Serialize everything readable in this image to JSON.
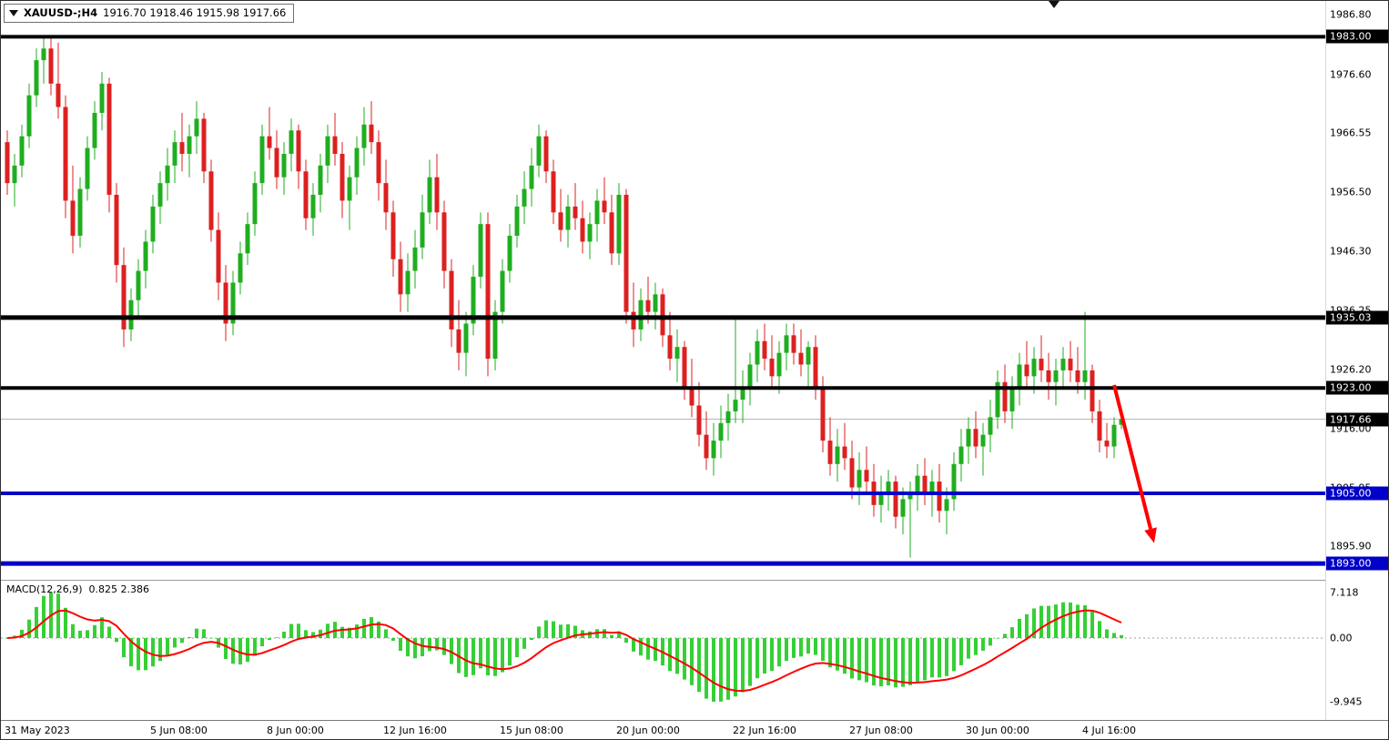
{
  "header": {
    "symbol": "XAUUSD-;H4",
    "ohlc_text": "1916.70 1918.46 1915.98 1917.66"
  },
  "macd_panel": {
    "name": "MACD(12,26,9)",
    "values": "0.825 2.386"
  },
  "colors": {
    "background": "#ffffff",
    "candle_up": "#1fae1f",
    "candle_down": "#dd2020",
    "macd_hist": "#35d035",
    "macd_signal": "#ff0000",
    "level_black": "#000000",
    "level_blue": "#0000c8",
    "current_price_line": "#b5b5b5",
    "arrow": "#ff0000",
    "badge_black": "#000000",
    "badge_blue": "#0000c8"
  },
  "chart_data": {
    "type": "candlestick",
    "symbol": "XAUUSD",
    "timeframe": "H4",
    "title": "XAUUSD-;H4",
    "current_price": 1917.66,
    "y_axis": {
      "min": 1890,
      "max": 1989,
      "ticks": [
        {
          "text": "1986.80",
          "price": 1986.8
        },
        {
          "text": "1976.60",
          "price": 1976.6
        },
        {
          "text": "1966.55",
          "price": 1966.55
        },
        {
          "text": "1956.50",
          "price": 1956.5
        },
        {
          "text": "1946.30",
          "price": 1946.3
        },
        {
          "text": "1936.25",
          "price": 1936.25
        },
        {
          "text": "1926.20",
          "price": 1926.2
        },
        {
          "text": "1916.00",
          "price": 1916.0
        },
        {
          "text": "1905.95",
          "price": 1905.95
        },
        {
          "text": "1895.90",
          "price": 1895.9
        }
      ]
    },
    "price_badges": [
      {
        "text": "1983.00",
        "price": 1983.0,
        "bg": "#000000"
      },
      {
        "text": "1935.03",
        "price": 1935.03,
        "bg": "#000000"
      },
      {
        "text": "1923.00",
        "price": 1923.0,
        "bg": "#000000"
      },
      {
        "text": "1917.66",
        "price": 1917.66,
        "bg": "#000000"
      },
      {
        "text": "1905.00",
        "price": 1905.0,
        "bg": "#0000c8"
      },
      {
        "text": "1893.00",
        "price": 1893.0,
        "bg": "#0000c8"
      }
    ],
    "levels": [
      {
        "price": 1983.0,
        "color": "#000000",
        "width": 4
      },
      {
        "price": 1935.03,
        "color": "#000000",
        "width": 5
      },
      {
        "price": 1923.0,
        "color": "#000000",
        "width": 4
      },
      {
        "price": 1905.0,
        "color": "#0000c8",
        "width": 4
      },
      {
        "price": 1893.0,
        "color": "#0000c8",
        "width": 5
      }
    ],
    "arrow": {
      "from_bar": 152,
      "from_price": 1923.5,
      "to_bar": 157.5,
      "to_price": 1896.5
    },
    "x_axis_labels": [
      {
        "text": "31 May 2023",
        "bar": 0
      },
      {
        "text": "5 Jun 08:00",
        "bar": 20
      },
      {
        "text": "8 Jun 00:00",
        "bar": 36
      },
      {
        "text": "12 Jun 16:00",
        "bar": 52
      },
      {
        "text": "15 Jun 08:00",
        "bar": 68
      },
      {
        "text": "20 Jun 00:00",
        "bar": 84
      },
      {
        "text": "22 Jun 16:00",
        "bar": 100
      },
      {
        "text": "27 Jun 08:00",
        "bar": 116
      },
      {
        "text": "30 Jun 00:00",
        "bar": 132
      },
      {
        "text": "4 Jul 16:00",
        "bar": 148
      }
    ],
    "macd": {
      "params": "12,26,9",
      "display_values": "0.825 2.386",
      "axis_max": 7.118,
      "axis_min": -9.945,
      "axis_labels": [
        {
          "text": "7.118",
          "value": 7.118
        },
        {
          "text": "0.00",
          "value": 0
        },
        {
          "text": "-9.945",
          "value": -9.945
        }
      ]
    },
    "ohlc": [
      [
        1965,
        1967,
        1956,
        1958
      ],
      [
        1958,
        1963,
        1954,
        1961
      ],
      [
        1961,
        1968,
        1959,
        1966
      ],
      [
        1966,
        1975,
        1964,
        1973
      ],
      [
        1973,
        1981,
        1971,
        1979
      ],
      [
        1979,
        1983,
        1975,
        1981
      ],
      [
        1981,
        1983,
        1973,
        1975
      ],
      [
        1975,
        1982,
        1969,
        1971
      ],
      [
        1971,
        1973,
        1952,
        1955
      ],
      [
        1955,
        1961,
        1946,
        1949
      ],
      [
        1949,
        1959,
        1947,
        1957
      ],
      [
        1957,
        1966,
        1955,
        1964
      ],
      [
        1964,
        1972,
        1962,
        1970
      ],
      [
        1970,
        1977,
        1967,
        1975
      ],
      [
        1975,
        1976,
        1953,
        1956
      ],
      [
        1956,
        1958,
        1941,
        1944
      ],
      [
        1944,
        1947,
        1930,
        1933
      ],
      [
        1933,
        1940,
        1931,
        1938
      ],
      [
        1938,
        1945,
        1935,
        1943
      ],
      [
        1943,
        1950,
        1940,
        1948
      ],
      [
        1948,
        1956,
        1946,
        1954
      ],
      [
        1954,
        1960,
        1951,
        1958
      ],
      [
        1958,
        1964,
        1955,
        1961
      ],
      [
        1961,
        1967,
        1958,
        1965
      ],
      [
        1965,
        1970,
        1960,
        1963
      ],
      [
        1963,
        1968,
        1959,
        1966
      ],
      [
        1966,
        1972,
        1963,
        1969
      ],
      [
        1969,
        1970,
        1958,
        1960
      ],
      [
        1960,
        1962,
        1948,
        1950
      ],
      [
        1950,
        1953,
        1938,
        1941
      ],
      [
        1941,
        1944,
        1931,
        1934
      ],
      [
        1934,
        1943,
        1932,
        1941
      ],
      [
        1941,
        1948,
        1939,
        1946
      ],
      [
        1946,
        1953,
        1944,
        1951
      ],
      [
        1951,
        1960,
        1949,
        1958
      ],
      [
        1958,
        1968,
        1956,
        1966
      ],
      [
        1966,
        1971,
        1962,
        1964
      ],
      [
        1964,
        1967,
        1957,
        1959
      ],
      [
        1959,
        1965,
        1956,
        1963
      ],
      [
        1963,
        1969,
        1960,
        1967
      ],
      [
        1967,
        1968,
        1957,
        1960
      ],
      [
        1960,
        1962,
        1950,
        1952
      ],
      [
        1952,
        1958,
        1949,
        1956
      ],
      [
        1956,
        1963,
        1953,
        1961
      ],
      [
        1961,
        1968,
        1958,
        1966
      ],
      [
        1966,
        1970,
        1961,
        1963
      ],
      [
        1963,
        1965,
        1952,
        1955
      ],
      [
        1955,
        1961,
        1950,
        1959
      ],
      [
        1959,
        1966,
        1956,
        1964
      ],
      [
        1964,
        1971,
        1961,
        1968
      ],
      [
        1968,
        1972,
        1963,
        1965
      ],
      [
        1965,
        1967,
        1955,
        1958
      ],
      [
        1958,
        1962,
        1950,
        1953
      ],
      [
        1953,
        1955,
        1942,
        1945
      ],
      [
        1945,
        1948,
        1936,
        1939
      ],
      [
        1939,
        1946,
        1936,
        1943
      ],
      [
        1943,
        1950,
        1940,
        1947
      ],
      [
        1947,
        1956,
        1945,
        1953
      ],
      [
        1953,
        1962,
        1951,
        1959
      ],
      [
        1959,
        1963,
        1950,
        1953
      ],
      [
        1953,
        1955,
        1940,
        1943
      ],
      [
        1943,
        1945,
        1930,
        1933
      ],
      [
        1933,
        1938,
        1926,
        1929
      ],
      [
        1929,
        1936,
        1925,
        1934
      ],
      [
        1934,
        1944,
        1932,
        1942
      ],
      [
        1942,
        1953,
        1940,
        1951
      ],
      [
        1951,
        1953,
        1925,
        1928
      ],
      [
        1928,
        1938,
        1926,
        1936
      ],
      [
        1936,
        1945,
        1934,
        1943
      ],
      [
        1943,
        1951,
        1941,
        1949
      ],
      [
        1949,
        1956,
        1947,
        1954
      ],
      [
        1954,
        1960,
        1951,
        1957
      ],
      [
        1957,
        1964,
        1954,
        1961
      ],
      [
        1961,
        1968,
        1959,
        1966
      ],
      [
        1966,
        1967,
        1958,
        1960
      ],
      [
        1960,
        1962,
        1951,
        1953
      ],
      [
        1953,
        1957,
        1948,
        1950
      ],
      [
        1950,
        1956,
        1947,
        1954
      ],
      [
        1954,
        1958,
        1950,
        1952
      ],
      [
        1952,
        1955,
        1946,
        1948
      ],
      [
        1948,
        1953,
        1945,
        1951
      ],
      [
        1951,
        1957,
        1948,
        1955
      ],
      [
        1955,
        1959,
        1951,
        1953
      ],
      [
        1953,
        1956,
        1944,
        1946
      ],
      [
        1946,
        1958,
        1944,
        1956
      ],
      [
        1956,
        1957,
        1934,
        1936
      ],
      [
        1936,
        1941,
        1930,
        1933
      ],
      [
        1933,
        1940,
        1931,
        1938
      ],
      [
        1938,
        1942,
        1934,
        1936
      ],
      [
        1936,
        1941,
        1933,
        1939
      ],
      [
        1939,
        1940,
        1930,
        1932
      ],
      [
        1932,
        1936,
        1926,
        1928
      ],
      [
        1928,
        1933,
        1924,
        1930
      ],
      [
        1930,
        1931,
        1921,
        1923
      ],
      [
        1923,
        1928,
        1918,
        1920
      ],
      [
        1920,
        1924,
        1913,
        1915
      ],
      [
        1915,
        1919,
        1909,
        1911
      ],
      [
        1911,
        1917,
        1908,
        1914
      ],
      [
        1914,
        1920,
        1911,
        1917
      ],
      [
        1917,
        1922,
        1914,
        1919
      ],
      [
        1919,
        1935,
        1917,
        1921
      ],
      [
        1921,
        1926,
        1917,
        1923
      ],
      [
        1923,
        1929,
        1920,
        1927
      ],
      [
        1927,
        1933,
        1924,
        1931
      ],
      [
        1931,
        1934,
        1926,
        1928
      ],
      [
        1928,
        1932,
        1923,
        1925
      ],
      [
        1925,
        1931,
        1922,
        1929
      ],
      [
        1929,
        1934,
        1926,
        1932
      ],
      [
        1932,
        1934,
        1927,
        1929
      ],
      [
        1929,
        1933,
        1925,
        1927
      ],
      [
        1927,
        1931,
        1923,
        1930
      ],
      [
        1930,
        1932,
        1921,
        1923
      ],
      [
        1923,
        1925,
        1912,
        1914
      ],
      [
        1914,
        1918,
        1908,
        1910
      ],
      [
        1910,
        1916,
        1907,
        1913
      ],
      [
        1913,
        1917,
        1909,
        1911
      ],
      [
        1911,
        1914,
        1904,
        1906
      ],
      [
        1906,
        1912,
        1903,
        1909
      ],
      [
        1909,
        1913,
        1905,
        1907
      ],
      [
        1907,
        1910,
        1901,
        1903
      ],
      [
        1903,
        1908,
        1900,
        1905
      ],
      [
        1905,
        1909,
        1902,
        1907
      ],
      [
        1907,
        1908,
        1899,
        1901
      ],
      [
        1901,
        1906,
        1898,
        1904
      ],
      [
        1904,
        1907,
        1894,
        1905
      ],
      [
        1905,
        1910,
        1902,
        1908
      ],
      [
        1908,
        1911,
        1903,
        1905
      ],
      [
        1905,
        1909,
        1901,
        1907
      ],
      [
        1907,
        1910,
        1900,
        1902
      ],
      [
        1902,
        1906,
        1898,
        1904
      ],
      [
        1904,
        1912,
        1902,
        1910
      ],
      [
        1910,
        1916,
        1907,
        1913
      ],
      [
        1913,
        1918,
        1910,
        1916
      ],
      [
        1916,
        1919,
        1911,
        1913
      ],
      [
        1913,
        1917,
        1908,
        1915
      ],
      [
        1915,
        1921,
        1912,
        1918
      ],
      [
        1918,
        1926,
        1916,
        1924
      ],
      [
        1924,
        1927,
        1917,
        1919
      ],
      [
        1919,
        1925,
        1916,
        1923
      ],
      [
        1923,
        1929,
        1920,
        1927
      ],
      [
        1927,
        1931,
        1923,
        1925
      ],
      [
        1925,
        1930,
        1922,
        1928
      ],
      [
        1928,
        1932,
        1924,
        1926
      ],
      [
        1926,
        1929,
        1921,
        1924
      ],
      [
        1924,
        1928,
        1920,
        1926
      ],
      [
        1926,
        1930,
        1923,
        1928
      ],
      [
        1928,
        1931,
        1924,
        1926
      ],
      [
        1926,
        1930,
        1922,
        1924
      ],
      [
        1924,
        1936,
        1921,
        1926
      ],
      [
        1926,
        1927,
        1917,
        1919
      ],
      [
        1919,
        1921,
        1912,
        1914
      ],
      [
        1914,
        1917,
        1911,
        1913
      ],
      [
        1913,
        1918,
        1911,
        1916.7
      ],
      [
        1916.7,
        1918.46,
        1915.98,
        1917.66
      ]
    ]
  }
}
